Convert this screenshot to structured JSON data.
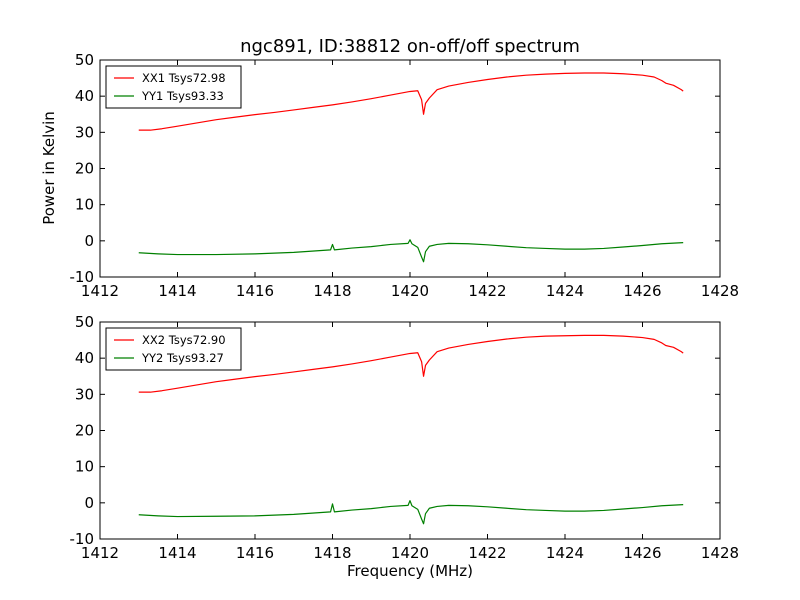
{
  "chart_data": [
    {
      "type": "line",
      "title": "ngc891, ID:38812 on-off/off spectrum",
      "xlabel": "",
      "ylabel": "Power in Kelvin",
      "xlim": [
        1412,
        1428
      ],
      "ylim": [
        -10,
        50
      ],
      "xticks": [
        1412,
        1414,
        1416,
        1418,
        1420,
        1422,
        1424,
        1426,
        1428
      ],
      "yticks": [
        -10,
        0,
        10,
        20,
        30,
        40,
        50
      ],
      "legend_position": "top-left",
      "grid": false,
      "series": [
        {
          "name": "XX1 Tsys72.98",
          "color": "#ff0000",
          "points": [
            [
              1413.0,
              30.6
            ],
            [
              1413.3,
              30.6
            ],
            [
              1413.6,
              31.0
            ],
            [
              1414.0,
              31.7
            ],
            [
              1414.5,
              32.6
            ],
            [
              1415.0,
              33.5
            ],
            [
              1415.5,
              34.2
            ],
            [
              1416.0,
              34.9
            ],
            [
              1416.5,
              35.5
            ],
            [
              1417.0,
              36.2
            ],
            [
              1417.5,
              36.9
            ],
            [
              1418.0,
              37.6
            ],
            [
              1418.5,
              38.4
            ],
            [
              1419.0,
              39.3
            ],
            [
              1419.5,
              40.3
            ],
            [
              1420.0,
              41.3
            ],
            [
              1420.2,
              41.5
            ],
            [
              1420.3,
              39.0
            ],
            [
              1420.35,
              35.0
            ],
            [
              1420.4,
              38.0
            ],
            [
              1420.5,
              39.5
            ],
            [
              1420.7,
              41.8
            ],
            [
              1421.0,
              42.8
            ],
            [
              1421.5,
              43.8
            ],
            [
              1422.0,
              44.6
            ],
            [
              1422.5,
              45.3
            ],
            [
              1423.0,
              45.8
            ],
            [
              1423.5,
              46.1
            ],
            [
              1424.0,
              46.3
            ],
            [
              1424.5,
              46.4
            ],
            [
              1425.0,
              46.4
            ],
            [
              1425.5,
              46.2
            ],
            [
              1426.0,
              45.8
            ],
            [
              1426.3,
              45.3
            ],
            [
              1426.5,
              44.3
            ],
            [
              1426.6,
              43.6
            ],
            [
              1426.8,
              43.0
            ],
            [
              1427.0,
              41.8
            ],
            [
              1427.05,
              41.4
            ]
          ]
        },
        {
          "name": "YY1 Tsys93.33",
          "color": "#008000",
          "points": [
            [
              1413.0,
              -3.3
            ],
            [
              1413.5,
              -3.6
            ],
            [
              1414.0,
              -3.8
            ],
            [
              1415.0,
              -3.8
            ],
            [
              1416.0,
              -3.6
            ],
            [
              1417.0,
              -3.2
            ],
            [
              1417.95,
              -2.5
            ],
            [
              1418.0,
              -1.0
            ],
            [
              1418.05,
              -2.5
            ],
            [
              1418.5,
              -2.0
            ],
            [
              1419.0,
              -1.6
            ],
            [
              1419.5,
              -1.0
            ],
            [
              1419.95,
              -0.7
            ],
            [
              1420.0,
              0.3
            ],
            [
              1420.05,
              -0.8
            ],
            [
              1420.2,
              -1.8
            ],
            [
              1420.3,
              -4.5
            ],
            [
              1420.35,
              -5.8
            ],
            [
              1420.4,
              -3.0
            ],
            [
              1420.5,
              -1.5
            ],
            [
              1420.7,
              -1.0
            ],
            [
              1421.0,
              -0.7
            ],
            [
              1421.5,
              -0.8
            ],
            [
              1422.0,
              -1.1
            ],
            [
              1422.5,
              -1.5
            ],
            [
              1423.0,
              -1.9
            ],
            [
              1423.5,
              -2.1
            ],
            [
              1424.0,
              -2.3
            ],
            [
              1424.5,
              -2.3
            ],
            [
              1425.0,
              -2.1
            ],
            [
              1425.5,
              -1.7
            ],
            [
              1426.0,
              -1.3
            ],
            [
              1426.5,
              -0.8
            ],
            [
              1427.05,
              -0.5
            ]
          ]
        }
      ]
    },
    {
      "type": "line",
      "title": "",
      "xlabel": "Frequency (MHz)",
      "ylabel": "",
      "xlim": [
        1412,
        1428
      ],
      "ylim": [
        -10,
        50
      ],
      "xticks": [
        1412,
        1414,
        1416,
        1418,
        1420,
        1422,
        1424,
        1426,
        1428
      ],
      "yticks": [
        -10,
        0,
        10,
        20,
        30,
        40,
        50
      ],
      "legend_position": "top-left",
      "grid": false,
      "series": [
        {
          "name": "XX2 Tsys72.90",
          "color": "#ff0000",
          "points": [
            [
              1413.0,
              30.6
            ],
            [
              1413.3,
              30.6
            ],
            [
              1413.6,
              31.0
            ],
            [
              1414.0,
              31.7
            ],
            [
              1414.5,
              32.6
            ],
            [
              1415.0,
              33.5
            ],
            [
              1415.5,
              34.2
            ],
            [
              1416.0,
              34.9
            ],
            [
              1416.5,
              35.5
            ],
            [
              1417.0,
              36.2
            ],
            [
              1417.5,
              36.9
            ],
            [
              1418.0,
              37.6
            ],
            [
              1418.5,
              38.4
            ],
            [
              1419.0,
              39.3
            ],
            [
              1419.5,
              40.3
            ],
            [
              1420.0,
              41.3
            ],
            [
              1420.2,
              41.5
            ],
            [
              1420.3,
              39.0
            ],
            [
              1420.35,
              35.0
            ],
            [
              1420.4,
              38.0
            ],
            [
              1420.5,
              39.5
            ],
            [
              1420.7,
              41.8
            ],
            [
              1421.0,
              42.8
            ],
            [
              1421.5,
              43.8
            ],
            [
              1422.0,
              44.6
            ],
            [
              1422.5,
              45.3
            ],
            [
              1423.0,
              45.8
            ],
            [
              1423.5,
              46.1
            ],
            [
              1424.0,
              46.2
            ],
            [
              1424.5,
              46.3
            ],
            [
              1425.0,
              46.3
            ],
            [
              1425.5,
              46.1
            ],
            [
              1426.0,
              45.7
            ],
            [
              1426.3,
              45.2
            ],
            [
              1426.5,
              44.2
            ],
            [
              1426.6,
              43.5
            ],
            [
              1426.8,
              43.0
            ],
            [
              1427.0,
              41.8
            ],
            [
              1427.05,
              41.4
            ]
          ]
        },
        {
          "name": "YY2 Tsys93.27",
          "color": "#008000",
          "points": [
            [
              1413.0,
              -3.3
            ],
            [
              1413.5,
              -3.6
            ],
            [
              1414.0,
              -3.8
            ],
            [
              1415.0,
              -3.7
            ],
            [
              1416.0,
              -3.6
            ],
            [
              1417.0,
              -3.2
            ],
            [
              1417.95,
              -2.5
            ],
            [
              1418.0,
              -0.3
            ],
            [
              1418.05,
              -2.5
            ],
            [
              1418.5,
              -2.0
            ],
            [
              1419.0,
              -1.6
            ],
            [
              1419.5,
              -1.0
            ],
            [
              1419.95,
              -0.7
            ],
            [
              1420.0,
              0.6
            ],
            [
              1420.05,
              -0.8
            ],
            [
              1420.2,
              -1.8
            ],
            [
              1420.3,
              -4.5
            ],
            [
              1420.35,
              -5.8
            ],
            [
              1420.4,
              -3.0
            ],
            [
              1420.5,
              -1.5
            ],
            [
              1420.7,
              -1.0
            ],
            [
              1421.0,
              -0.7
            ],
            [
              1421.5,
              -0.8
            ],
            [
              1422.0,
              -1.1
            ],
            [
              1422.5,
              -1.5
            ],
            [
              1423.0,
              -1.9
            ],
            [
              1423.5,
              -2.1
            ],
            [
              1424.0,
              -2.3
            ],
            [
              1424.5,
              -2.3
            ],
            [
              1425.0,
              -2.1
            ],
            [
              1425.5,
              -1.7
            ],
            [
              1426.0,
              -1.3
            ],
            [
              1426.5,
              -0.8
            ],
            [
              1427.05,
              -0.5
            ]
          ]
        }
      ]
    }
  ]
}
